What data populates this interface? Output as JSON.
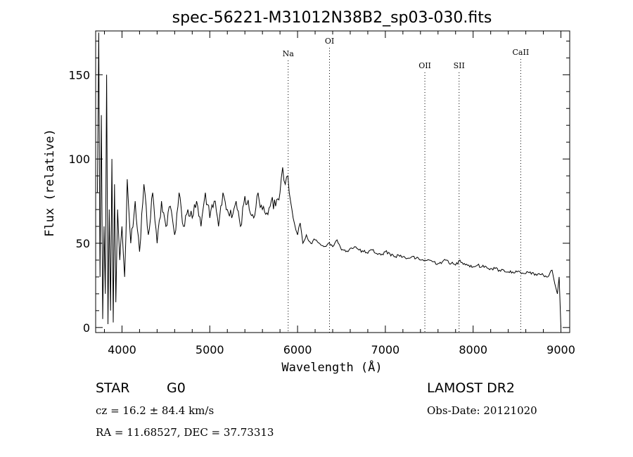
{
  "chart_data": {
    "type": "line",
    "title": "spec-56221-M31012N38B2_sp03-030.fits",
    "xlabel": "Wavelength (Å)",
    "ylabel": "Flux (relative)",
    "xlim": [
      3700,
      9100
    ],
    "ylim": [
      -3,
      176
    ],
    "x_ticks": [
      4000,
      5000,
      6000,
      7000,
      8000,
      9000
    ],
    "y_ticks": [
      0,
      50,
      100,
      150
    ],
    "grid": false,
    "line_color": "#000000",
    "spectral_lines": [
      {
        "label": "Na",
        "wavelength": 5893
      },
      {
        "label": "OI",
        "wavelength": 6364
      },
      {
        "label": "OII",
        "wavelength": 7450
      },
      {
        "label": "SII",
        "wavelength": 7840
      },
      {
        "label": "CaII",
        "wavelength": 8542
      }
    ],
    "series": [
      {
        "x": [
          3720,
          3735,
          3750,
          3765,
          3780,
          3795,
          3810,
          3825,
          3840,
          3855,
          3870,
          3885,
          3900,
          3915,
          3930,
          3950,
          3975,
          4000,
          4030,
          4060,
          4100,
          4150,
          4200,
          4250,
          4300,
          4350,
          4400,
          4450,
          4500,
          4550,
          4600,
          4650,
          4700,
          4750,
          4800,
          4850,
          4900,
          4950,
          5000,
          5050,
          5100,
          5150,
          5200,
          5250,
          5300,
          5350,
          5400,
          5450,
          5500,
          5550,
          5600,
          5650,
          5700,
          5750,
          5800,
          5830,
          5860,
          5890,
          5920,
          5950,
          5980,
          6000,
          6030,
          6060,
          6100,
          6150,
          6200,
          6250,
          6300,
          6350,
          6400,
          6450,
          6500,
          6550,
          6600,
          6650,
          6700,
          6750,
          6800,
          6850,
          6900,
          6950,
          7000,
          7050,
          7100,
          7150,
          7200,
          7250,
          7300,
          7350,
          7400,
          7450,
          7500,
          7550,
          7600,
          7650,
          7700,
          7750,
          7800,
          7850,
          7900,
          7950,
          8000,
          8050,
          8100,
          8150,
          8200,
          8250,
          8300,
          8350,
          8400,
          8450,
          8500,
          8550,
          8600,
          8650,
          8700,
          8750,
          8800,
          8850,
          8900,
          8930,
          8960,
          8980,
          9000
        ],
        "y": [
          80,
          175,
          30,
          126,
          5,
          60,
          20,
          150,
          2,
          70,
          10,
          100,
          3,
          85,
          15,
          70,
          40,
          60,
          30,
          88,
          50,
          75,
          45,
          85,
          55,
          80,
          50,
          75,
          60,
          72,
          55,
          80,
          60,
          70,
          65,
          75,
          60,
          80,
          65,
          75,
          60,
          80,
          70,
          65,
          75,
          60,
          78,
          70,
          65,
          80,
          70,
          68,
          75,
          72,
          80,
          95,
          85,
          90,
          75,
          65,
          58,
          55,
          62,
          50,
          55,
          50,
          52,
          50,
          48,
          50,
          48,
          52,
          46,
          45,
          47,
          48,
          46,
          45,
          44,
          46,
          44,
          43,
          45,
          44,
          42,
          43,
          42,
          41,
          42,
          41,
          40,
          40,
          40,
          39,
          38,
          39,
          40,
          38,
          37,
          40,
          38,
          37,
          36,
          37,
          36,
          36,
          35,
          35,
          34,
          34,
          33,
          33,
          33,
          32,
          32,
          33,
          31,
          32,
          31,
          30,
          34,
          26,
          20,
          30,
          0
        ]
      }
    ]
  },
  "info": {
    "object_class": "STAR",
    "subclass": "G0",
    "survey": "LAMOST DR2",
    "cz": "cz = 16.2 ± 84.4 km/s",
    "obs_date": "Obs-Date: 20121020",
    "coords": "RA =  11.68527, DEC =  37.73313"
  }
}
